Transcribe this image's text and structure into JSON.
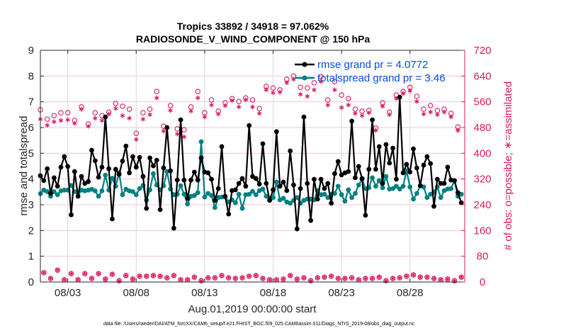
{
  "chart_data": {
    "type": "line",
    "title": "Tropics 33892 / 34918 = 97.062%",
    "subtitle": "RADIOSONDE_V_WIND_COMPONENT @ 150 hPa",
    "xlabel": "Aug.01,2019 00:00:00 start",
    "ylabel": "rmse and totalspread",
    "ylabel_right": "# of obs: o=possible; ∗=assimilated",
    "footnote": "data file: /Users/raeder/DAI/ATM_forcXX/CAM6_setup/f.e21.FHIST_BGC.f09_025.CAM6assim.011/Diags_NTrS_2019-08/obs_diag_output.nc",
    "x_unit": "days since Aug.01,2019 00:00",
    "x_step_days": 0.25,
    "xlim": [
      0,
      31
    ],
    "ylim": [
      0,
      9
    ],
    "ylim_right": [
      0,
      720
    ],
    "xticks": [
      {
        "day": 2,
        "label": "08/03"
      },
      {
        "day": 7,
        "label": "08/08"
      },
      {
        "day": 12,
        "label": "08/13"
      },
      {
        "day": 17,
        "label": "08/18"
      },
      {
        "day": 22,
        "label": "08/23"
      },
      {
        "day": 27,
        "label": "08/28"
      }
    ],
    "yticks_left": [
      "0",
      "1",
      "2",
      "3",
      "4",
      "5",
      "6",
      "7",
      "8",
      "9"
    ],
    "yticks_right": [
      "0",
      "80",
      "160",
      "240",
      "320",
      "400",
      "480",
      "560",
      "640",
      "720"
    ],
    "grid": true,
    "legend_position": "top-right",
    "colors": {
      "rmse": "#000000",
      "totalspread": "#008080",
      "obs": "#d81b60",
      "legend_text": "#0050e6",
      "vgrid": "#d9d9d9",
      "hgrid": "#f2c6d8"
    },
    "series": [
      {
        "name": "rmse grand pr = 4.0772",
        "axis": "left",
        "values": [
          4.13,
          3.94,
          4.4,
          3.44,
          4.05,
          3.72,
          4.46,
          4.87,
          4.49,
          2.61,
          4.29,
          3.33,
          4.1,
          3.83,
          3.9,
          5.12,
          4.71,
          4.07,
          4.46,
          6.41,
          4.4,
          2.45,
          4.38,
          4.18,
          4.7,
          5.28,
          4.24,
          4.87,
          4.46,
          4.84,
          4.1,
          2.86,
          4.82,
          4.51,
          4.73,
          2.81,
          4.43,
          6.0,
          4.32,
          2.09,
          3.96,
          6.3,
          3.96,
          3.25,
          3.96,
          4.27,
          3.96,
          4.82,
          4.27,
          4.24,
          3.99,
          3.17,
          3.63,
          5.26,
          3.33,
          2.64,
          3.55,
          3.58,
          3.83,
          4.02,
          3.72,
          6.08,
          4.1,
          4.02,
          3.8,
          5.37,
          3.83,
          3.17,
          3.58,
          5.84,
          3.72,
          3.88,
          3.55,
          5.09,
          3.77,
          2.06,
          3.63,
          6.41,
          3.83,
          2.39,
          3.99,
          3.22,
          3.99,
          3.63,
          3.83,
          3.06,
          4.21,
          4.68,
          4.16,
          4.24,
          4.29,
          6.25,
          4.05,
          4.49,
          4.02,
          2.59,
          4.38,
          6.3,
          4.38,
          5.26,
          3.83,
          5.34,
          4.62,
          5.2,
          3.99,
          7.18,
          4.24,
          4.57,
          4.27,
          5.17,
          4.43,
          3.74,
          4.54,
          4.87,
          4.6,
          2.94,
          3.99,
          3.83,
          3.83,
          4.46,
          3.96,
          3.94,
          3.47,
          3.08
        ]
      },
      {
        "name": "totalspread grand pr = 3.46",
        "axis": "left",
        "values": [
          3.43,
          3.57,
          3.51,
          3.33,
          3.51,
          3.39,
          3.54,
          3.57,
          3.57,
          3.75,
          3.51,
          3.46,
          3.57,
          3.54,
          3.57,
          3.6,
          3.54,
          3.33,
          3.54,
          4.15,
          3.57,
          4.03,
          3.72,
          4.24,
          3.39,
          3.6,
          3.54,
          3.51,
          3.39,
          3.63,
          3.75,
          3.18,
          3.58,
          4.21,
          3.77,
          3.58,
          3.74,
          4.29,
          3.61,
          3.39,
          3.41,
          3.74,
          3.41,
          3.03,
          3.33,
          3.36,
          3.47,
          5.45,
          3.3,
          3.44,
          3.36,
          2.89,
          3.28,
          3.3,
          3.3,
          3.11,
          3.19,
          3.08,
          3.41,
          2.86,
          3.39,
          3.41,
          3.52,
          3.39,
          3.55,
          3.61,
          3.33,
          3.19,
          3.28,
          3.88,
          3.19,
          3.25,
          3.11,
          3.06,
          3.17,
          3.28,
          3.06,
          3.17,
          3.22,
          3.22,
          3.19,
          3.55,
          3.39,
          3.41,
          3.28,
          3.41,
          3.44,
          3.72,
          3.39,
          3.14,
          3.58,
          3.28,
          3.44,
          3.77,
          3.99,
          3.63,
          3.66,
          4.05,
          3.72,
          3.94,
          3.66,
          4.1,
          3.61,
          3.63,
          3.72,
          3.61,
          3.72,
          4.32,
          3.69,
          3.22,
          3.44,
          3.74,
          3.69,
          3.28,
          3.41,
          3.5,
          3.69,
          3.28,
          3.55,
          3.61,
          3.63,
          3.94,
          3.33,
          3.41
        ]
      },
      {
        "name": "obs possible (o)",
        "axis": "right",
        "values_00z": [
          535,
          506,
          517,
          526,
          526,
          502,
          544,
          491,
          526,
          517,
          528,
          555,
          546,
          537,
          462,
          526,
          537,
          592,
          484,
          548,
          476,
          473,
          544,
          592,
          526,
          566,
          531,
          557,
          570,
          561,
          572,
          566,
          539,
          608,
          603,
          597,
          630,
          640,
          605,
          603,
          619,
          638,
          566,
          623,
          581,
          570,
          537,
          531,
          533,
          478,
          557,
          528,
          581,
          592,
          605,
          577,
          537,
          548,
          533,
          537,
          524,
          482
        ],
        "values_12z": [
          29,
          11,
          37,
          7,
          26,
          7,
          26,
          11,
          26,
          9,
          24,
          4,
          20,
          9,
          18,
          18,
          20,
          18,
          13,
          20,
          7,
          7,
          15,
          4,
          13,
          13,
          20,
          13,
          11,
          13,
          18,
          20,
          11,
          7,
          7,
          9,
          20,
          9,
          13,
          4,
          13,
          15,
          18,
          11,
          11,
          13,
          7,
          11,
          11,
          15,
          4,
          11,
          13,
          18,
          22,
          15,
          15,
          11,
          7,
          9,
          4,
          15
        ]
      },
      {
        "name": "obs assimilated (∗)",
        "axis": "right",
        "values_00z": [
          506,
          487,
          498,
          502,
          504,
          493,
          537,
          484,
          509,
          502,
          522,
          539,
          517,
          509,
          443,
          506,
          520,
          572,
          469,
          533,
          460,
          451,
          531,
          572,
          513,
          550,
          522,
          548,
          564,
          544,
          566,
          544,
          524,
          597,
          588,
          590,
          619,
          630,
          583,
          577,
          597,
          623,
          550,
          597,
          542,
          550,
          524,
          517,
          526,
          471,
          546,
          520,
          570,
          586,
          594,
          561,
          522,
          528,
          520,
          528,
          513,
          471
        ],
        "values_12z": [
          29,
          11,
          37,
          7,
          26,
          7,
          26,
          11,
          26,
          9,
          24,
          4,
          20,
          9,
          18,
          18,
          20,
          18,
          13,
          20,
          7,
          7,
          15,
          4,
          13,
          13,
          20,
          13,
          11,
          13,
          18,
          20,
          11,
          7,
          7,
          9,
          20,
          9,
          13,
          4,
          13,
          15,
          18,
          11,
          11,
          13,
          7,
          11,
          11,
          15,
          4,
          11,
          13,
          18,
          22,
          15,
          15,
          11,
          7,
          9,
          4,
          15
        ]
      }
    ]
  }
}
